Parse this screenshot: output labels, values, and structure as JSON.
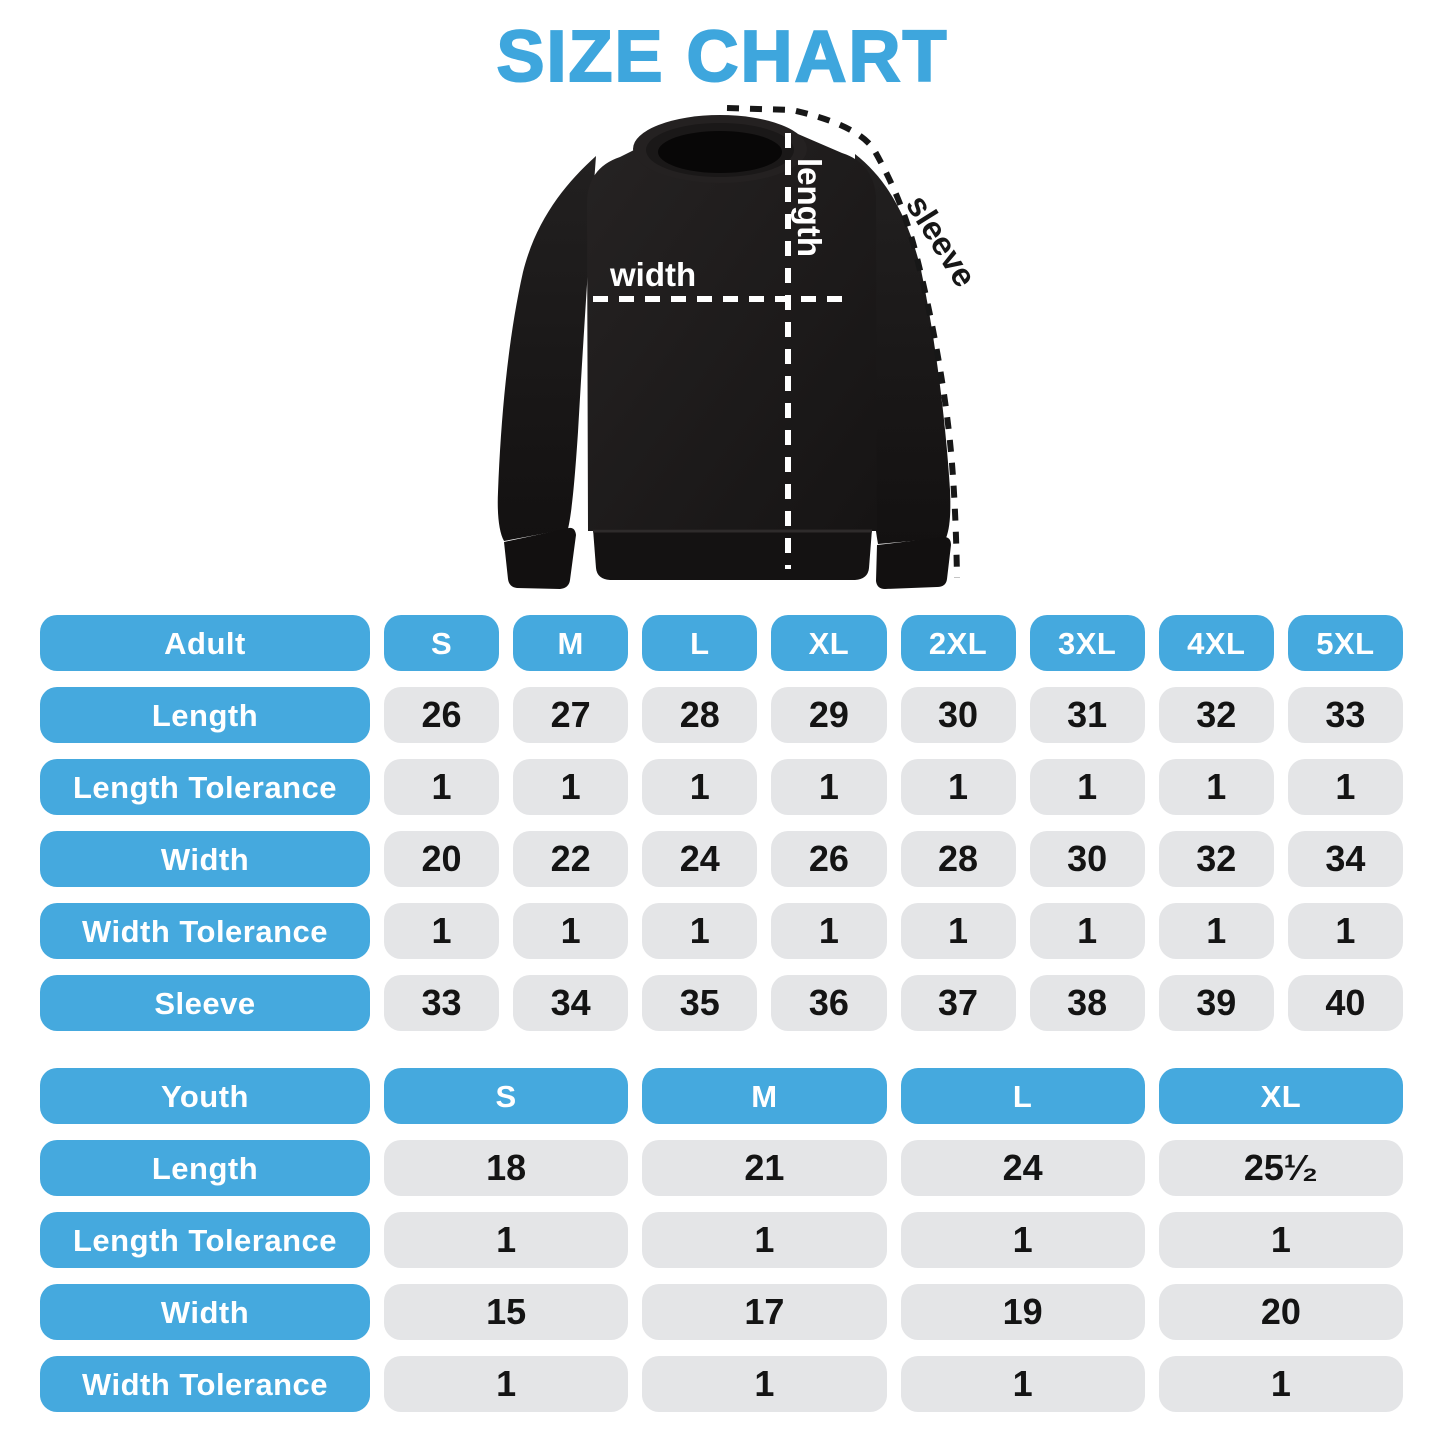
{
  "title": "SIZE CHART",
  "colors": {
    "accent_blue": "#45A9DE",
    "title_blue": "#3EA6DD",
    "cell_gray": "#E4E5E7",
    "value_text": "#141414",
    "garment_black": "#1C1A1A"
  },
  "diagram": {
    "garment": "crewneck-sweatshirt",
    "labels": {
      "length": "length",
      "width": "width",
      "sleeve": "sleeve"
    }
  },
  "adult_table": {
    "header": {
      "label": "Adult",
      "sizes": [
        "S",
        "M",
        "L",
        "XL",
        "2XL",
        "3XL",
        "4XL",
        "5XL"
      ]
    },
    "rows": [
      {
        "label": "Length",
        "values": [
          "26",
          "27",
          "28",
          "29",
          "30",
          "31",
          "32",
          "33"
        ]
      },
      {
        "label": "Length Tolerance",
        "values": [
          "1",
          "1",
          "1",
          "1",
          "1",
          "1",
          "1",
          "1"
        ]
      },
      {
        "label": "Width",
        "values": [
          "20",
          "22",
          "24",
          "26",
          "28",
          "30",
          "32",
          "34"
        ]
      },
      {
        "label": "Width Tolerance",
        "values": [
          "1",
          "1",
          "1",
          "1",
          "1",
          "1",
          "1",
          "1"
        ]
      },
      {
        "label": "Sleeve",
        "values": [
          "33",
          "34",
          "35",
          "36",
          "37",
          "38",
          "39",
          "40"
        ]
      }
    ]
  },
  "youth_table": {
    "header": {
      "label": "Youth",
      "sizes": [
        "S",
        "M",
        "L",
        "XL"
      ]
    },
    "rows": [
      {
        "label": "Length",
        "values": [
          "18",
          "21",
          "24",
          "25¹⁄₂"
        ]
      },
      {
        "label": "Length Tolerance",
        "values": [
          "1",
          "1",
          "1",
          "1"
        ]
      },
      {
        "label": "Width",
        "values": [
          "15",
          "17",
          "19",
          "20"
        ]
      },
      {
        "label": "Width Tolerance",
        "values": [
          "1",
          "1",
          "1",
          "1"
        ]
      }
    ]
  },
  "chart_data": [
    {
      "type": "table",
      "title": "Adult sweatshirt sizes (inches)",
      "columns": [
        "Adult",
        "S",
        "M",
        "L",
        "XL",
        "2XL",
        "3XL",
        "4XL",
        "5XL"
      ],
      "rows": [
        [
          "Length",
          26,
          27,
          28,
          29,
          30,
          31,
          32,
          33
        ],
        [
          "Length Tolerance",
          1,
          1,
          1,
          1,
          1,
          1,
          1,
          1
        ],
        [
          "Width",
          20,
          22,
          24,
          26,
          28,
          30,
          32,
          34
        ],
        [
          "Width Tolerance",
          1,
          1,
          1,
          1,
          1,
          1,
          1,
          1
        ],
        [
          "Sleeve",
          33,
          34,
          35,
          36,
          37,
          38,
          39,
          40
        ]
      ]
    },
    {
      "type": "table",
      "title": "Youth sweatshirt sizes (inches)",
      "columns": [
        "Youth",
        "S",
        "M",
        "L",
        "XL"
      ],
      "rows": [
        [
          "Length",
          18,
          21,
          24,
          25.5
        ],
        [
          "Length Tolerance",
          1,
          1,
          1,
          1
        ],
        [
          "Width",
          15,
          17,
          19,
          20
        ],
        [
          "Width Tolerance",
          1,
          1,
          1,
          1
        ]
      ]
    }
  ]
}
